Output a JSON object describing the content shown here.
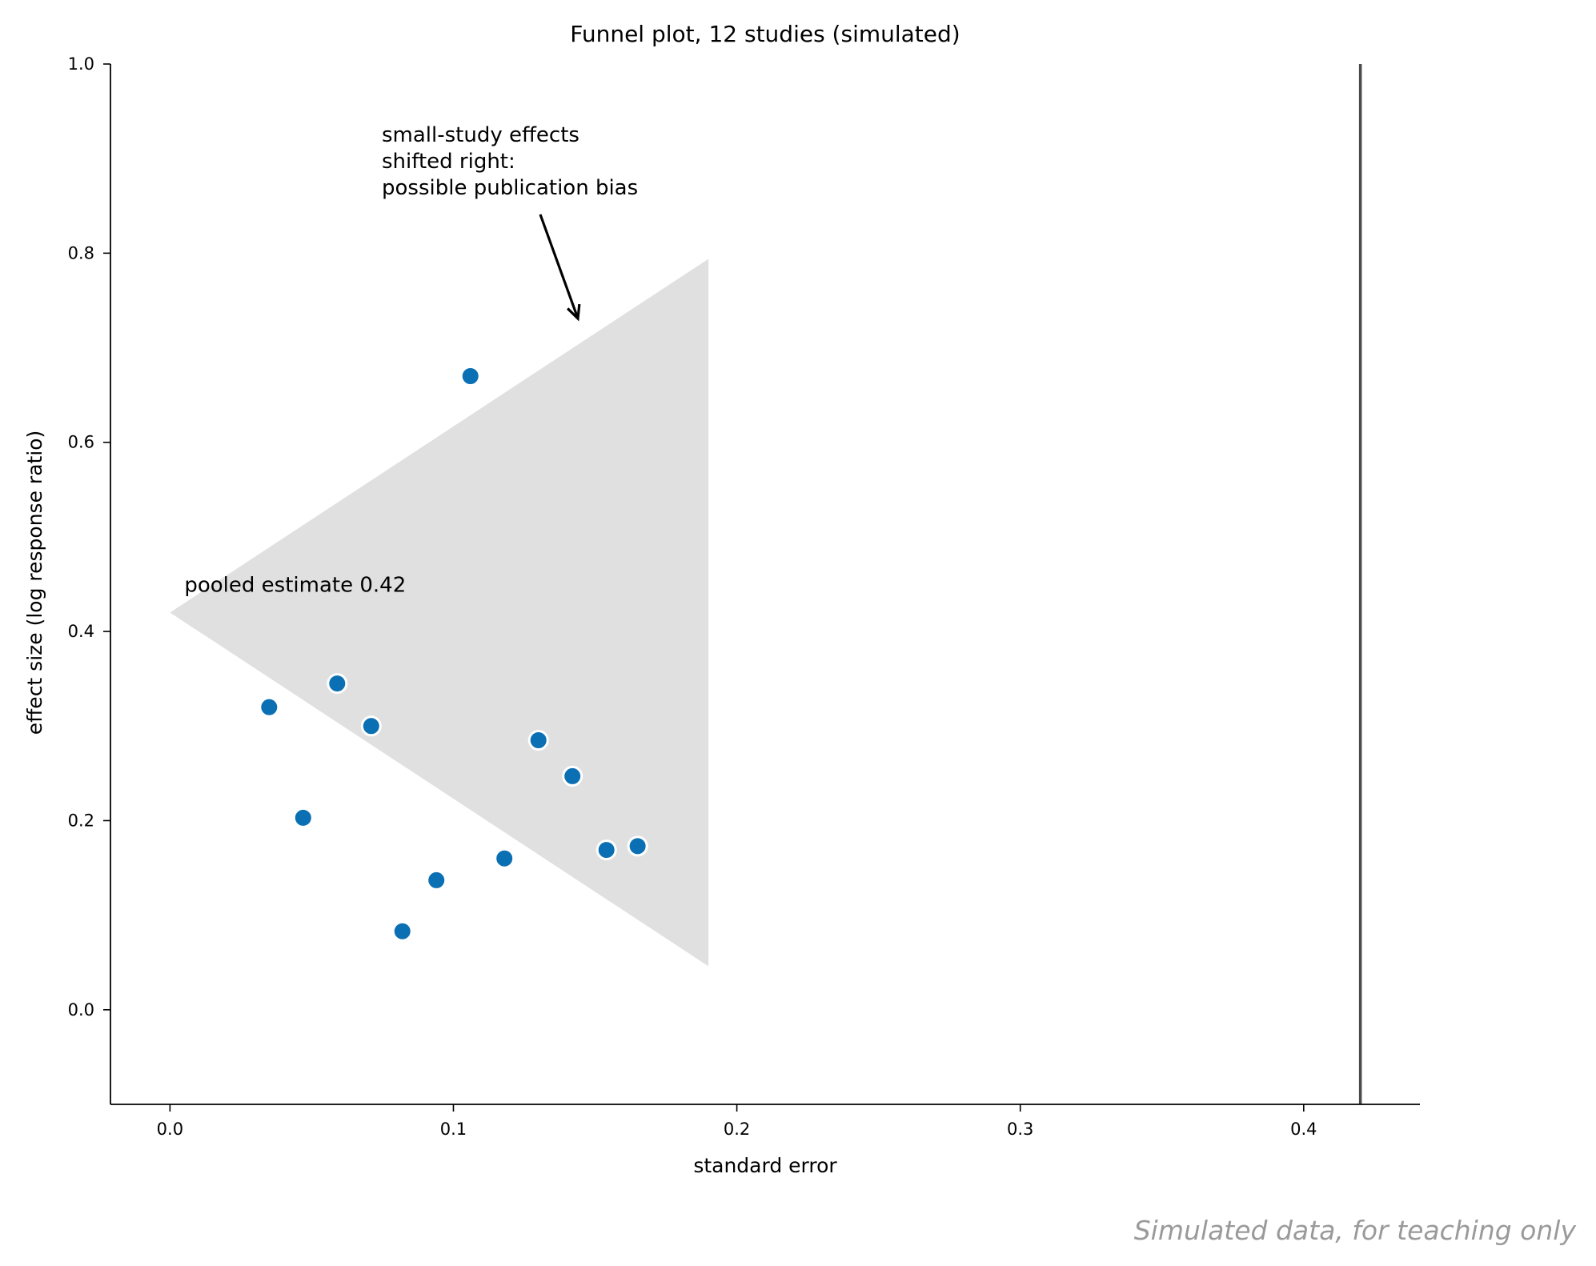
{
  "chart_data": {
    "type": "scatter",
    "title": "Funnel plot, 12 studies (simulated)",
    "xlabel": "standard error",
    "ylabel": "effect size (log response ratio)",
    "xlim": [
      -0.021,
      0.441
    ],
    "ylim": [
      -0.1,
      1.0
    ],
    "xticks": [
      "0.0",
      "0.1",
      "0.2",
      "0.3",
      "0.4"
    ],
    "yticks": [
      "0.0",
      "0.2",
      "0.4",
      "0.6",
      "0.8",
      "1.0"
    ],
    "grid": false,
    "funnel": {
      "apex": {
        "se": 0.0,
        "effect": 0.42
      },
      "max_se": 0.19,
      "upper": 0.794,
      "lower": 0.046,
      "color": "#e0e0e0"
    },
    "reference_line": {
      "x": 0.42,
      "color": "#4a4a4a"
    },
    "points_color": "#0a6fb3",
    "points": [
      {
        "se": 0.035,
        "effect": 0.32
      },
      {
        "se": 0.047,
        "effect": 0.203
      },
      {
        "se": 0.059,
        "effect": 0.345
      },
      {
        "se": 0.071,
        "effect": 0.3
      },
      {
        "se": 0.082,
        "effect": 0.083
      },
      {
        "se": 0.094,
        "effect": 0.137
      },
      {
        "se": 0.106,
        "effect": 0.67
      },
      {
        "se": 0.118,
        "effect": 0.16
      },
      {
        "se": 0.13,
        "effect": 0.285
      },
      {
        "se": 0.142,
        "effect": 0.247
      },
      {
        "se": 0.154,
        "effect": 0.169
      },
      {
        "se": 0.165,
        "effect": 0.173
      }
    ],
    "annotations": [
      {
        "text": "pooled estimate 0.42"
      },
      {
        "lines": [
          "small-study effects",
          "shifted right:",
          "possible publication bias"
        ]
      }
    ]
  },
  "footer": {
    "watermark": "Simulated data, for teaching only"
  }
}
